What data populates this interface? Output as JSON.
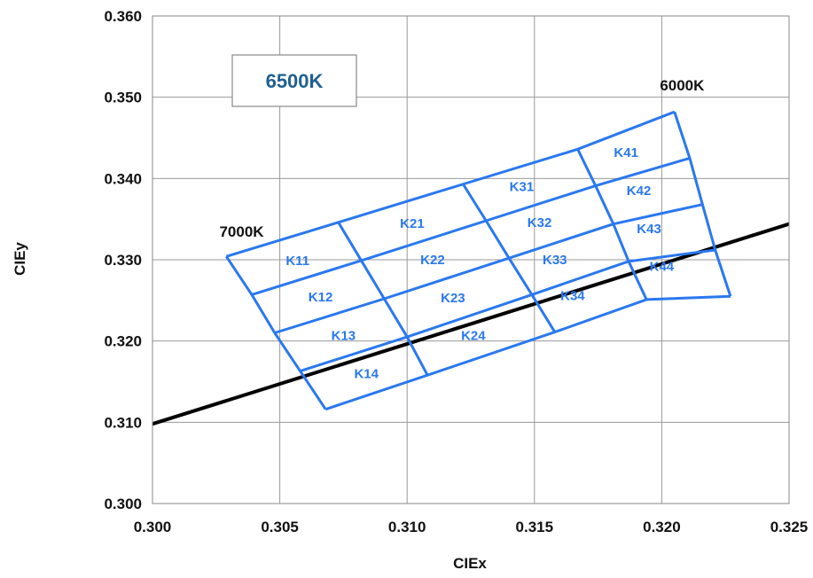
{
  "chart_data": {
    "type": "line",
    "xlabel": "CIEx",
    "ylabel": "CIEy",
    "xlim": [
      0.3,
      0.325
    ],
    "ylim": [
      0.3,
      0.36
    ],
    "x_ticks": [
      "0.300",
      "0.305",
      "0.310",
      "0.315",
      "0.320",
      "0.325"
    ],
    "y_ticks": [
      "0.300",
      "0.310",
      "0.320",
      "0.330",
      "0.340",
      "0.350",
      "0.360"
    ],
    "grid": true,
    "boxed_label": "6500K",
    "annotations": [
      {
        "text": "7000K",
        "x": 0.3035,
        "y": 0.3335
      },
      {
        "text": "6000K",
        "x": 0.3208,
        "y": 0.3515
      }
    ],
    "planckian_locus": {
      "x": [
        0.3,
        0.325
      ],
      "y": [
        0.3098,
        0.3344
      ],
      "color": "#000000"
    },
    "bin_grid": {
      "color": "#2a78f0",
      "corner_rows": [
        [
          [
            0.3029,
            0.3304
          ],
          [
            0.3073,
            0.3346
          ],
          [
            0.3122,
            0.3393
          ],
          [
            0.3167,
            0.3436
          ],
          [
            0.3205,
            0.3482
          ]
        ],
        [
          [
            0.3039,
            0.3257
          ],
          [
            0.3082,
            0.3299
          ],
          [
            0.3131,
            0.3348
          ],
          [
            0.3174,
            0.3391
          ],
          [
            0.3211,
            0.3425
          ]
        ],
        [
          [
            0.3048,
            0.321
          ],
          [
            0.3091,
            0.3252
          ],
          [
            0.314,
            0.3302
          ],
          [
            0.3181,
            0.3344
          ],
          [
            0.3216,
            0.3368
          ]
        ],
        [
          [
            0.3058,
            0.3163
          ],
          [
            0.31,
            0.3205
          ],
          [
            0.3149,
            0.3257
          ],
          [
            0.3187,
            0.3298
          ],
          [
            0.3221,
            0.3312
          ]
        ],
        [
          [
            0.3068,
            0.3116
          ],
          [
            0.3108,
            0.3158
          ],
          [
            0.3158,
            0.3211
          ],
          [
            0.3194,
            0.3251
          ],
          [
            0.3227,
            0.3255
          ]
        ]
      ],
      "bins": [
        {
          "label": "K11",
          "x": 0.3057,
          "y": 0.3299
        },
        {
          "label": "K12",
          "x": 0.3066,
          "y": 0.3254
        },
        {
          "label": "K13",
          "x": 0.3075,
          "y": 0.3207
        },
        {
          "label": "K14",
          "x": 0.3084,
          "y": 0.316
        },
        {
          "label": "K21",
          "x": 0.3102,
          "y": 0.3345
        },
        {
          "label": "K22",
          "x": 0.311,
          "y": 0.33
        },
        {
          "label": "K23",
          "x": 0.3118,
          "y": 0.3253
        },
        {
          "label": "K24",
          "x": 0.3126,
          "y": 0.3207
        },
        {
          "label": "K31",
          "x": 0.3145,
          "y": 0.339
        },
        {
          "label": "K32",
          "x": 0.3152,
          "y": 0.3346
        },
        {
          "label": "K33",
          "x": 0.3158,
          "y": 0.33
        },
        {
          "label": "K34",
          "x": 0.3165,
          "y": 0.3256
        },
        {
          "label": "K41",
          "x": 0.3186,
          "y": 0.3432
        },
        {
          "label": "K42",
          "x": 0.3191,
          "y": 0.3385
        },
        {
          "label": "K43",
          "x": 0.3195,
          "y": 0.3338
        },
        {
          "label": "K44",
          "x": 0.32,
          "y": 0.3292
        }
      ]
    }
  }
}
